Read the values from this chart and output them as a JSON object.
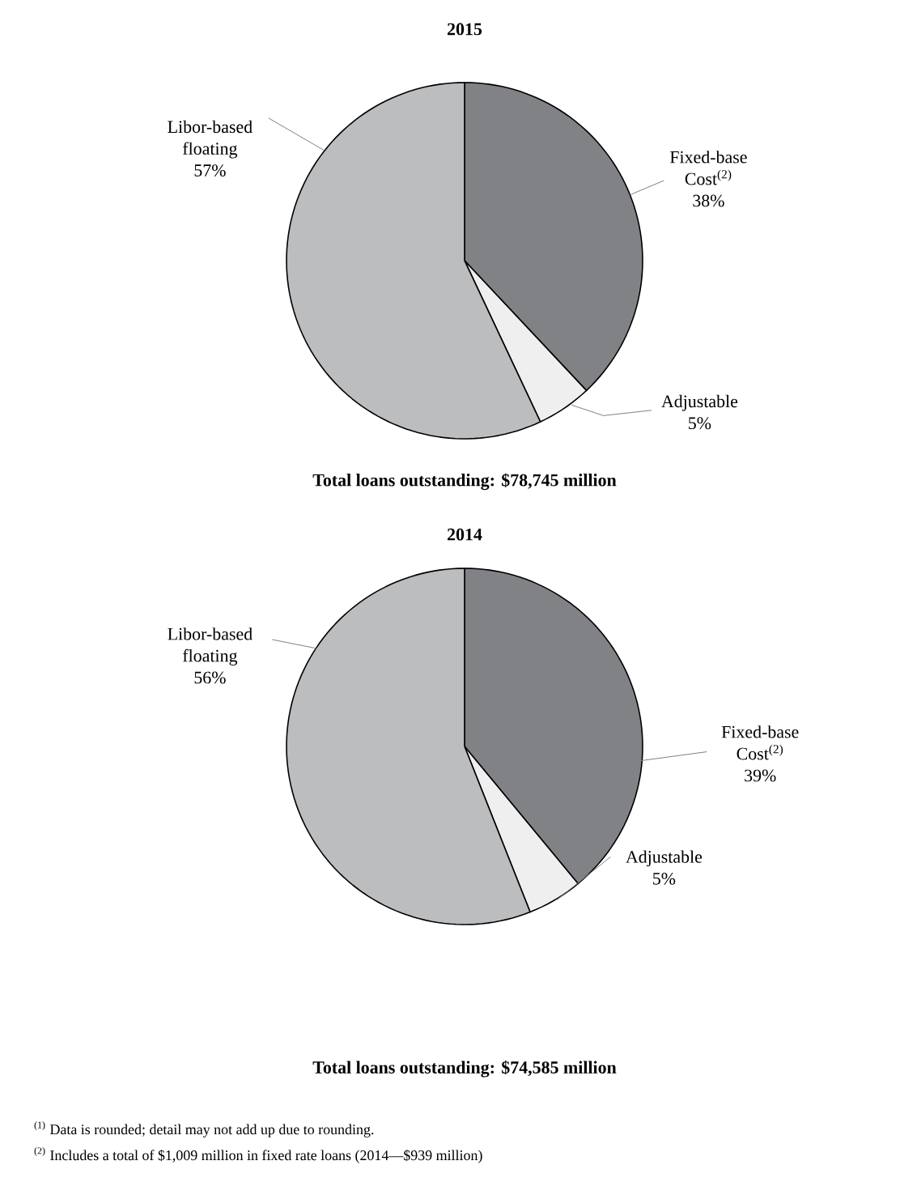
{
  "chart_data": [
    {
      "type": "pie",
      "title": "2015",
      "subtitle": "Total loans outstanding: $78,745 million",
      "categories": [
        "Fixed-base Cost$^{(2)}$",
        "Adjustable",
        "Libor-based floating"
      ],
      "values": [
        38,
        5,
        57
      ],
      "value_labels": [
        "38%",
        "5%",
        "57%"
      ],
      "colors": [
        "#808285",
        "#efefef",
        "#bcbdbf"
      ]
    },
    {
      "type": "pie",
      "title": "2014",
      "subtitle": "Total loans outstanding: $74,585 million",
      "categories": [
        "Fixed-base Cost$^{(2)}$",
        "Adjustable",
        "Libor-based floating"
      ],
      "values": [
        39,
        5,
        56
      ],
      "value_labels": [
        "39%",
        "5%",
        "56%"
      ],
      "colors": [
        "#808285",
        "#efefef",
        "#bcbdbf"
      ],
      "annotations": [
        "$^{(1)}$ Data is rounded; detail may not add up due to rounding.",
        "$^{(2)}$ Includes a total of $1,009 million in fixed rate loans (2014—$939 million)"
      ]
    }
  ]
}
